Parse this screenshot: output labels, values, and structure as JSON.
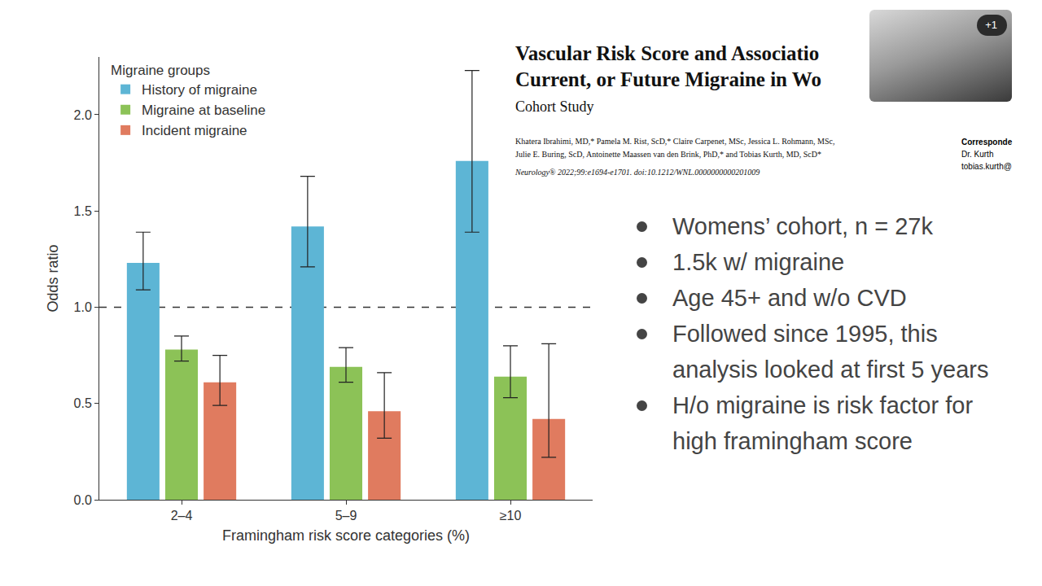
{
  "chart_data": {
    "type": "bar",
    "categories": [
      "2–4",
      "5–9",
      "≥10"
    ],
    "series": [
      {
        "name": "History of migraine",
        "color": "#5db5d5",
        "values": [
          1.23,
          1.42,
          1.76
        ],
        "ci_low": [
          1.09,
          1.21,
          1.39
        ],
        "ci_high": [
          1.39,
          1.68,
          2.23
        ]
      },
      {
        "name": "Migraine at baseline",
        "color": "#8cc257",
        "values": [
          0.78,
          0.69,
          0.64
        ],
        "ci_low": [
          0.72,
          0.61,
          0.53
        ],
        "ci_high": [
          0.85,
          0.79,
          0.8
        ]
      },
      {
        "name": "Incident migraine",
        "color": "#e07b5f",
        "values": [
          0.61,
          0.46,
          0.42
        ],
        "ci_low": [
          0.49,
          0.32,
          0.22
        ],
        "ci_high": [
          0.75,
          0.66,
          0.81
        ]
      }
    ],
    "legend_title": "Migraine groups",
    "legend": "upper left",
    "x_label": "Framingham risk score categories (%)",
    "y_label": "Odds ratio",
    "ylim": [
      0,
      2.3
    ],
    "yticks": [
      {
        "value": 0,
        "label": "0.0"
      },
      0.5,
      {
        "value": 1,
        "label": "1.0"
      },
      1.5,
      {
        "value": 2,
        "label": "2.0"
      }
    ],
    "reference_line": {
      "y": 1,
      "line_style": "dashed"
    },
    "grid": false
  },
  "paper": {
    "title_lines": [
      "Vascular Risk Score and Associatio",
      "Current, or Future Migraine in Wo"
    ],
    "subtitle": "Cohort Study",
    "authors": [
      "Khatera Ibrahimi, MD,* Pamela M. Rist, ScD,* Claire Carpenet, MSc, Jessica L. Rohmann, MSc,",
      "Julie E. Buring, ScD, Antoinette Maassen van den Brink, PhD,* and Tobias Kurth, MD, ScD*"
    ],
    "citation": "Neurology® 2022;99:e1694-e1701. doi:10.1212/WNL.0000000000201009",
    "correspondence": [
      "Corresponde",
      "Dr. Kurth",
      "tobias.kurth@"
    ]
  },
  "bullets": [
    "Womens’ cohort, n = 27k",
    "1.5k w/ migraine",
    "Age 45+ and w/o CVD",
    "Followed since 1995, this analysis looked at first 5 years",
    "H/o migraine is risk factor for high framingham score"
  ],
  "video_overlay": {
    "badge": "+1"
  }
}
